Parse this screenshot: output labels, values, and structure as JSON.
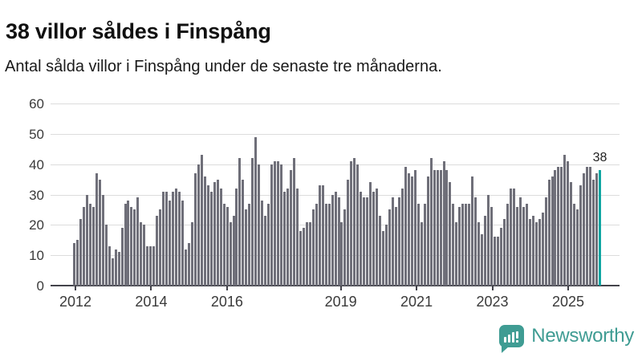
{
  "header": {
    "title": "38 villor såldes i Finspång",
    "subtitle": "Antal sålda villor i Finspång under de senaste tre månaderna."
  },
  "chart_data": {
    "type": "bar",
    "title": "38 villor såldes i Finspång",
    "xlabel": "",
    "ylabel": "",
    "ylim": [
      0,
      60
    ],
    "yticks": [
      0,
      10,
      20,
      30,
      40,
      50,
      60
    ],
    "xtick_years": [
      2012,
      2014,
      2016,
      2019,
      2021,
      2023,
      2025
    ],
    "grid": true,
    "legend": "none",
    "start_year": 2012,
    "frequency": "monthly-rolling-3-months",
    "bar_color": "#6f6f79",
    "highlight_color": "#0da5a1",
    "values": [
      14,
      15,
      22,
      26,
      30,
      27,
      26,
      37,
      35,
      30,
      20,
      13,
      9,
      12,
      11,
      19,
      27,
      28,
      26,
      25,
      29,
      21,
      20,
      13,
      13,
      13,
      23,
      25,
      31,
      31,
      28,
      31,
      32,
      31,
      28,
      12,
      14,
      21,
      37,
      40,
      43,
      36,
      33,
      31,
      34,
      35,
      32,
      27,
      26,
      21,
      23,
      32,
      42,
      35,
      25,
      27,
      42,
      49,
      40,
      28,
      23,
      27,
      40,
      41,
      41,
      40,
      31,
      32,
      38,
      42,
      32,
      18,
      19,
      21,
      21,
      25,
      27,
      33,
      33,
      27,
      27,
      30,
      31,
      29,
      21,
      25,
      35,
      41,
      42,
      40,
      31,
      29,
      29,
      34,
      31,
      32,
      23,
      18,
      20,
      25,
      29,
      26,
      29,
      32,
      39,
      37,
      36,
      38,
      27,
      21,
      27,
      36,
      42,
      38,
      38,
      38,
      41,
      38,
      34,
      27,
      21,
      26,
      27,
      27,
      27,
      36,
      29,
      21,
      17,
      23,
      30,
      26,
      16,
      16,
      19,
      22,
      27,
      32,
      32,
      26,
      29,
      26,
      27,
      22,
      23,
      21,
      22,
      24,
      29,
      35,
      36,
      38,
      39,
      39,
      43,
      41,
      34,
      27,
      25,
      33,
      37,
      39,
      39,
      35,
      37,
      38
    ],
    "highlighted_bar": {
      "position": "last",
      "value": 38,
      "label": "38"
    }
  },
  "footer": {
    "brand": "Newsworthy",
    "logo_icon": "newsworthy-speech-bubble-bar-chart-icon",
    "brand_color": "#3f9c93"
  }
}
